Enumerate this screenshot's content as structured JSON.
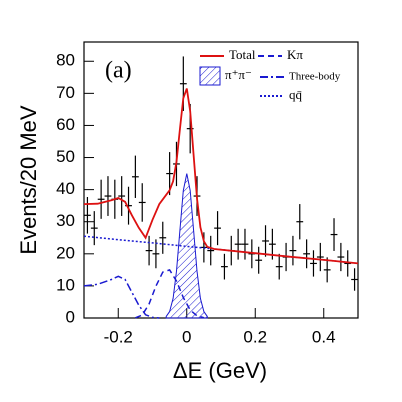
{
  "chart_data": {
    "type": "line",
    "x_label": "ΔE (GeV)",
    "y_label": "Events/20 MeV",
    "annotation": "(a)",
    "xlim": [
      -0.3,
      0.5
    ],
    "xticks": [
      -0.2,
      0,
      0.2,
      0.4
    ],
    "ylim": [
      0,
      86
    ],
    "yticks": [
      0,
      10,
      20,
      30,
      40,
      50,
      60,
      70,
      80
    ],
    "series": [
      {
        "style": "errorbar",
        "color": "#000000",
        "x": [
          -0.29,
          -0.27,
          -0.25,
          -0.23,
          -0.21,
          -0.19,
          -0.17,
          -0.15,
          -0.13,
          -0.11,
          -0.09,
          -0.07,
          -0.05,
          -0.03,
          -0.01,
          0.01,
          0.03,
          0.05,
          0.07,
          0.09,
          0.11,
          0.13,
          0.15,
          0.17,
          0.19,
          0.21,
          0.23,
          0.25,
          0.27,
          0.29,
          0.31,
          0.33,
          0.35,
          0.37,
          0.39,
          0.41,
          0.43,
          0.45,
          0.47,
          0.49
        ],
        "values": [
          32,
          28,
          37,
          38,
          37,
          38,
          35,
          44,
          36,
          21,
          20,
          25,
          45,
          48,
          73,
          59,
          38,
          22,
          21,
          28,
          16,
          21,
          23,
          23,
          20,
          18,
          24,
          23,
          16,
          19,
          21,
          30,
          20,
          17,
          19,
          15,
          26,
          19,
          17,
          12
        ],
        "errors": [
          5.7,
          5.3,
          6.1,
          6.2,
          6.1,
          6.2,
          5.9,
          6.6,
          6,
          4.6,
          4.5,
          5,
          6.7,
          6.9,
          8.5,
          7.7,
          6.2,
          4.7,
          4.6,
          5.3,
          4,
          4.6,
          4.8,
          4.8,
          4.5,
          4.2,
          4.9,
          4.8,
          4,
          4.4,
          4.6,
          5.5,
          4.5,
          4.1,
          4.4,
          3.9,
          5.1,
          4.4,
          4.1,
          3.5
        ]
      },
      {
        "name": "π⁺π⁻",
        "style": "hatched",
        "color": "#1a1ad0",
        "x": [
          -0.06,
          -0.05,
          -0.04,
          -0.03,
          -0.02,
          -0.01,
          0,
          0.01,
          0.02,
          0.03,
          0.04,
          0.05,
          0.06
        ],
        "values": [
          0.5,
          2,
          6.1,
          14.6,
          27.3,
          39.7,
          45,
          39.7,
          27.3,
          14.6,
          6.1,
          2,
          0.5
        ]
      },
      {
        "name": "Kπ",
        "style": "dashed",
        "color": "#1a1ad0",
        "x": [
          -0.15,
          -0.13,
          -0.11,
          -0.09,
          -0.07,
          -0.05,
          -0.03,
          -0.01,
          0.01,
          0.03,
          0.05
        ],
        "values": [
          0.05,
          0.9,
          4.4,
          9.9,
          14.3,
          15,
          11.5,
          6.4,
          2.5,
          0.7,
          0.1
        ]
      },
      {
        "name": "Three-body",
        "style": "dashdot",
        "color": "#1a1ad0",
        "x": [
          -0.3,
          -0.26,
          -0.22,
          -0.2,
          -0.18,
          -0.16,
          -0.14,
          -0.12,
          -0.1,
          -0.08
        ],
        "values": [
          10,
          10.5,
          12,
          13,
          12,
          8,
          4,
          1,
          0.2,
          0
        ]
      },
      {
        "name": "qq̄",
        "style": "dotted",
        "color": "#1a1ad0",
        "x": [
          -0.3,
          -0.2,
          -0.1,
          0,
          0.1,
          0.2,
          0.3,
          0.4,
          0.5
        ],
        "values": [
          25.5,
          24.4,
          23.4,
          22.3,
          21.3,
          20.2,
          19.1,
          18.1,
          17
        ]
      },
      {
        "name": "Total",
        "style": "solid",
        "color": "#dd1111",
        "x": [
          -0.3,
          -0.26,
          -0.22,
          -0.2,
          -0.18,
          -0.16,
          -0.14,
          -0.12,
          -0.1,
          -0.08,
          -0.06,
          -0.05,
          -0.04,
          -0.03,
          -0.02,
          -0.01,
          0,
          0.01,
          0.02,
          0.03,
          0.04,
          0.05,
          0.06,
          0.08,
          0.2,
          0.3,
          0.4,
          0.5
        ],
        "values": [
          35.5,
          35.6,
          36.7,
          37.4,
          36.2,
          32,
          28.1,
          25,
          30.6,
          35.5,
          38.4,
          39.8,
          42.6,
          48.7,
          58.8,
          68.5,
          71.5,
          64.4,
          50.8,
          37.3,
          28.3,
          23.9,
          22.2,
          21.5,
          20.2,
          19.1,
          18.1,
          17
        ]
      }
    ]
  }
}
